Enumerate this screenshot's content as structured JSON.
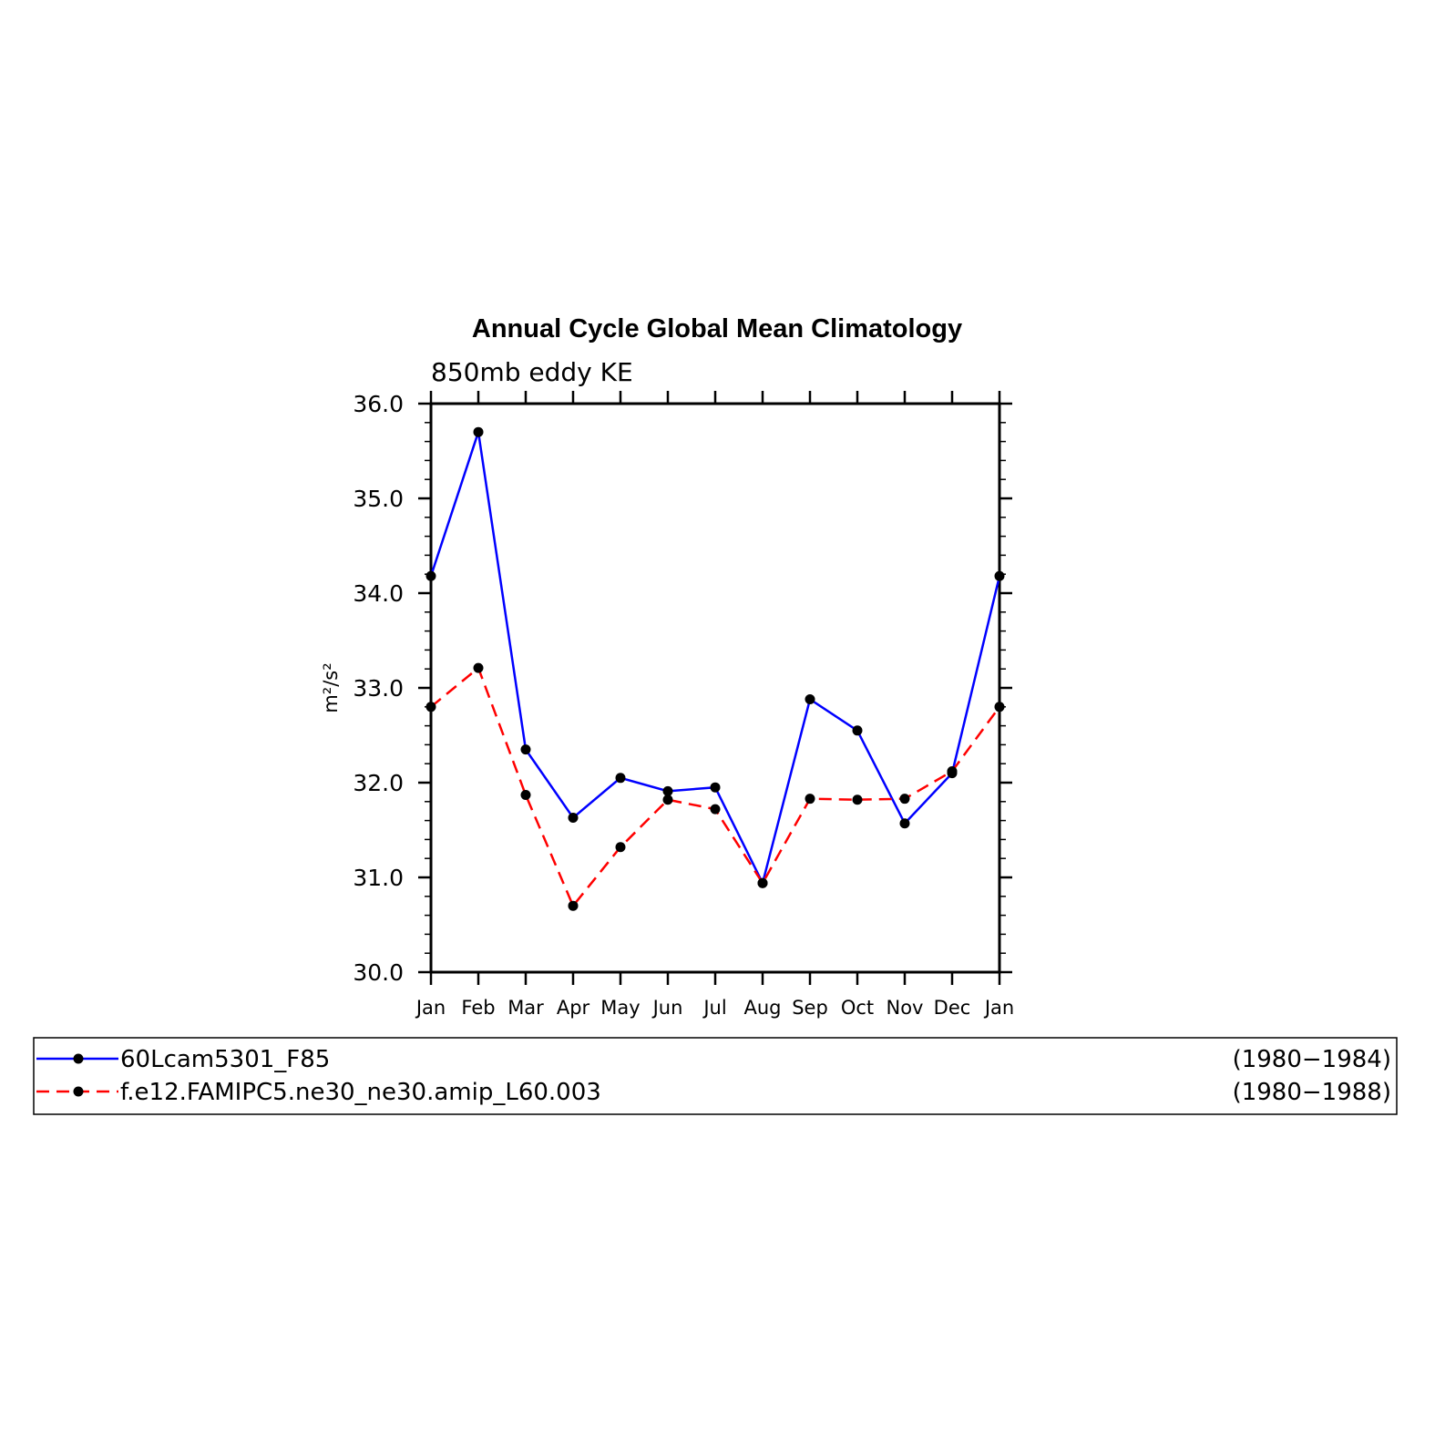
{
  "chart_data": {
    "type": "line",
    "title": "Annual Cycle Global Mean Climatology",
    "subtitle": "850mb eddy KE",
    "ylabel": "m²/s²",
    "xlabel": "",
    "categories": [
      "Jan",
      "Feb",
      "Mar",
      "Apr",
      "May",
      "Jun",
      "Jul",
      "Aug",
      "Sep",
      "Oct",
      "Nov",
      "Dec",
      "Jan"
    ],
    "ylim": [
      30.0,
      36.0
    ],
    "yticks": [
      "30.0",
      "31.0",
      "32.0",
      "33.0",
      "34.0",
      "35.0",
      "36.0"
    ],
    "grid": false,
    "legend_position": "bottom",
    "series": [
      {
        "name": "60Lcam5301_F85",
        "period": "(1980−1984)",
        "color": "#0000ff",
        "dash": "solid",
        "values": [
          34.18,
          35.7,
          32.35,
          31.63,
          32.05,
          31.91,
          31.95,
          30.94,
          32.88,
          32.55,
          31.57,
          32.1,
          34.18
        ]
      },
      {
        "name": "f.e12.FAMIPC5.ne30_ne30.amip_L60.003",
        "period": "(1980−1988)",
        "color": "#ff0000",
        "dash": "dashed",
        "values": [
          32.8,
          33.21,
          31.87,
          30.7,
          31.32,
          31.82,
          31.72,
          30.94,
          31.83,
          31.82,
          31.83,
          32.12,
          32.8
        ]
      }
    ]
  }
}
